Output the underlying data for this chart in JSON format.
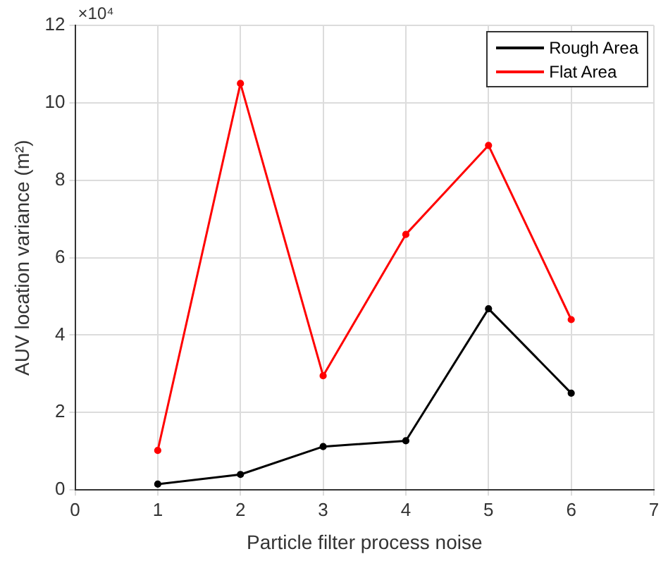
{
  "chart_data": {
    "type": "line",
    "xlabel": "Particle filter process noise",
    "ylabel": "AUV location variance (m²)",
    "x": [
      1,
      2,
      3,
      4,
      5,
      6
    ],
    "series": [
      {
        "name": "Rough Area",
        "color": "#000000",
        "values": [
          0.15,
          0.4,
          1.12,
          1.27,
          4.68,
          2.5
        ]
      },
      {
        "name": "Flat Area",
        "color": "#ff0000",
        "values": [
          1.02,
          10.5,
          2.95,
          6.6,
          8.9,
          4.4
        ]
      }
    ],
    "xlim": [
      0,
      7
    ],
    "xticks": [
      0,
      1,
      2,
      3,
      4,
      5,
      6,
      7
    ],
    "ylim": [
      0,
      12
    ],
    "yticks": [
      0,
      2,
      4,
      6,
      8,
      10,
      12
    ],
    "annotations": [
      "×10⁴"
    ],
    "grid": true,
    "legend": "top right",
    "marker": "circle",
    "line_style": "solid"
  }
}
